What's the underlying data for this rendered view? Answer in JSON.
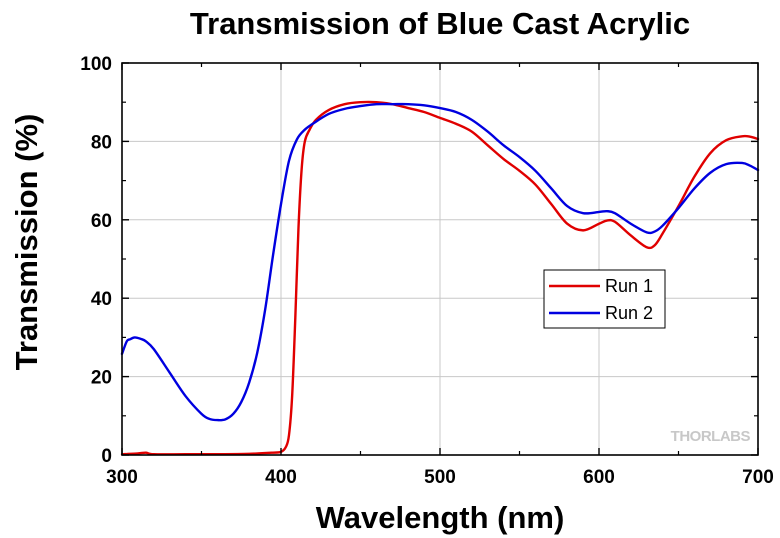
{
  "chart_data": {
    "type": "line",
    "title": "Transmission of Blue Cast Acrylic",
    "xlabel": "Wavelength (nm)",
    "ylabel": "Transmission (%)",
    "xlim": [
      300,
      700
    ],
    "ylim": [
      0,
      100
    ],
    "xticks": [
      300,
      400,
      500,
      600,
      700
    ],
    "yticks": [
      0,
      20,
      40,
      60,
      80,
      100
    ],
    "grid": true,
    "legend_position": "right",
    "watermark": "THORLABS",
    "series": [
      {
        "name": "Run 1",
        "color": "#e00000",
        "points": [
          [
            300,
            0.2
          ],
          [
            310,
            0.4
          ],
          [
            315,
            0.6
          ],
          [
            320,
            0.2
          ],
          [
            340,
            0.2
          ],
          [
            360,
            0.2
          ],
          [
            380,
            0.3
          ],
          [
            395,
            0.6
          ],
          [
            400,
            0.8
          ],
          [
            403,
            2
          ],
          [
            405,
            5
          ],
          [
            407,
            15
          ],
          [
            409,
            35
          ],
          [
            411,
            58
          ],
          [
            413,
            73
          ],
          [
            415,
            80
          ],
          [
            418,
            83
          ],
          [
            422,
            85.5
          ],
          [
            430,
            88
          ],
          [
            440,
            89.5
          ],
          [
            450,
            90
          ],
          [
            460,
            90
          ],
          [
            470,
            89.5
          ],
          [
            480,
            88.5
          ],
          [
            490,
            87.5
          ],
          [
            500,
            86
          ],
          [
            510,
            84.5
          ],
          [
            520,
            82.5
          ],
          [
            530,
            79
          ],
          [
            540,
            75.5
          ],
          [
            550,
            72.5
          ],
          [
            560,
            69
          ],
          [
            570,
            64
          ],
          [
            580,
            59
          ],
          [
            590,
            57.3
          ],
          [
            600,
            59
          ],
          [
            605,
            59.8
          ],
          [
            610,
            59.5
          ],
          [
            620,
            56
          ],
          [
            630,
            53
          ],
          [
            635,
            53.5
          ],
          [
            640,
            56.5
          ],
          [
            650,
            63.5
          ],
          [
            660,
            71
          ],
          [
            670,
            77
          ],
          [
            680,
            80.3
          ],
          [
            690,
            81.3
          ],
          [
            695,
            81.2
          ],
          [
            700,
            80.6
          ]
        ]
      },
      {
        "name": "Run 2",
        "color": "#0000e0",
        "points": [
          [
            300,
            25.8
          ],
          [
            303,
            29
          ],
          [
            305,
            29.5
          ],
          [
            308,
            30
          ],
          [
            312,
            29.6
          ],
          [
            315,
            29
          ],
          [
            320,
            27
          ],
          [
            330,
            21
          ],
          [
            340,
            15
          ],
          [
            350,
            10.5
          ],
          [
            355,
            9.2
          ],
          [
            360,
            8.9
          ],
          [
            365,
            9.1
          ],
          [
            370,
            10.5
          ],
          [
            375,
            13.5
          ],
          [
            380,
            18.5
          ],
          [
            385,
            26
          ],
          [
            390,
            37
          ],
          [
            395,
            51
          ],
          [
            400,
            64
          ],
          [
            405,
            75
          ],
          [
            410,
            80.5
          ],
          [
            415,
            83
          ],
          [
            420,
            84.5
          ],
          [
            430,
            87
          ],
          [
            440,
            88.3
          ],
          [
            450,
            89
          ],
          [
            460,
            89.5
          ],
          [
            470,
            89.5
          ],
          [
            480,
            89.5
          ],
          [
            490,
            89.2
          ],
          [
            500,
            88.5
          ],
          [
            510,
            87.5
          ],
          [
            520,
            85.5
          ],
          [
            530,
            82.5
          ],
          [
            540,
            79
          ],
          [
            550,
            76
          ],
          [
            560,
            72.5
          ],
          [
            570,
            68
          ],
          [
            580,
            63.5
          ],
          [
            590,
            61.7
          ],
          [
            600,
            62
          ],
          [
            605,
            62.2
          ],
          [
            610,
            61.7
          ],
          [
            620,
            59
          ],
          [
            630,
            56.8
          ],
          [
            635,
            57
          ],
          [
            640,
            58.5
          ],
          [
            650,
            63
          ],
          [
            660,
            68
          ],
          [
            670,
            72
          ],
          [
            680,
            74.2
          ],
          [
            690,
            74.5
          ],
          [
            695,
            73.8
          ],
          [
            700,
            72.7
          ]
        ]
      }
    ]
  }
}
